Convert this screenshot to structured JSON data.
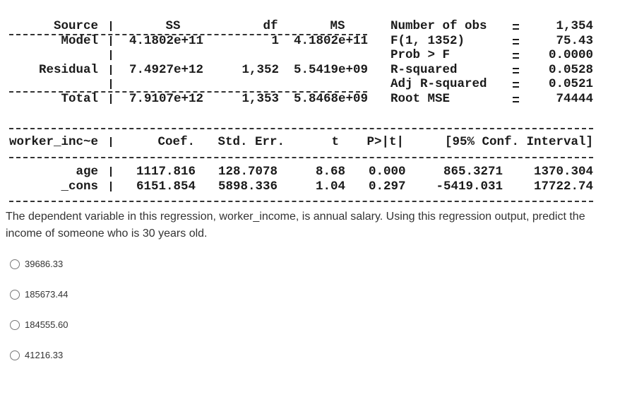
{
  "anova": {
    "header": [
      "Source",
      "SS",
      "df",
      "MS"
    ],
    "rows": [
      [
        "Model",
        "4.1802e+11",
        "1",
        "4.1802e+11"
      ],
      [
        "Residual",
        "7.4927e+12",
        "1,352",
        "5.5419e+09"
      ],
      [
        "Total",
        "7.9107e+12",
        "1,353",
        "5.8468e+09"
      ]
    ]
  },
  "model_stats": [
    {
      "label": "Number of obs",
      "value": "1,354"
    },
    {
      "label": "F(1, 1352)",
      "value": "75.43"
    },
    {
      "label": "Prob > F",
      "value": "0.0000"
    },
    {
      "label": "R-squared",
      "value": "0.0528"
    },
    {
      "label": "Adj R-squared",
      "value": "0.0521"
    },
    {
      "label": "Root MSE",
      "value": "74444"
    }
  ],
  "coefficients": {
    "header": [
      "worker_inc~e",
      "Coef.",
      "Std. Err.",
      "t",
      "P>|t|",
      "[95% Conf. Interval]"
    ],
    "rows": [
      [
        "age",
        "1117.816",
        "128.7078",
        "8.68",
        "0.000",
        "865.3271",
        "1370.304"
      ],
      [
        "_cons",
        "6151.854",
        "5898.336",
        "1.04",
        "0.297",
        "-5419.031",
        "17722.74"
      ]
    ]
  },
  "question": "The dependent variable in this regression, worker_income, is annual salary. Using this regression output, predict the income of someone who is 30 years old.",
  "options": [
    "39686.33",
    "185673.44",
    "184555.60",
    "41216.33"
  ]
}
